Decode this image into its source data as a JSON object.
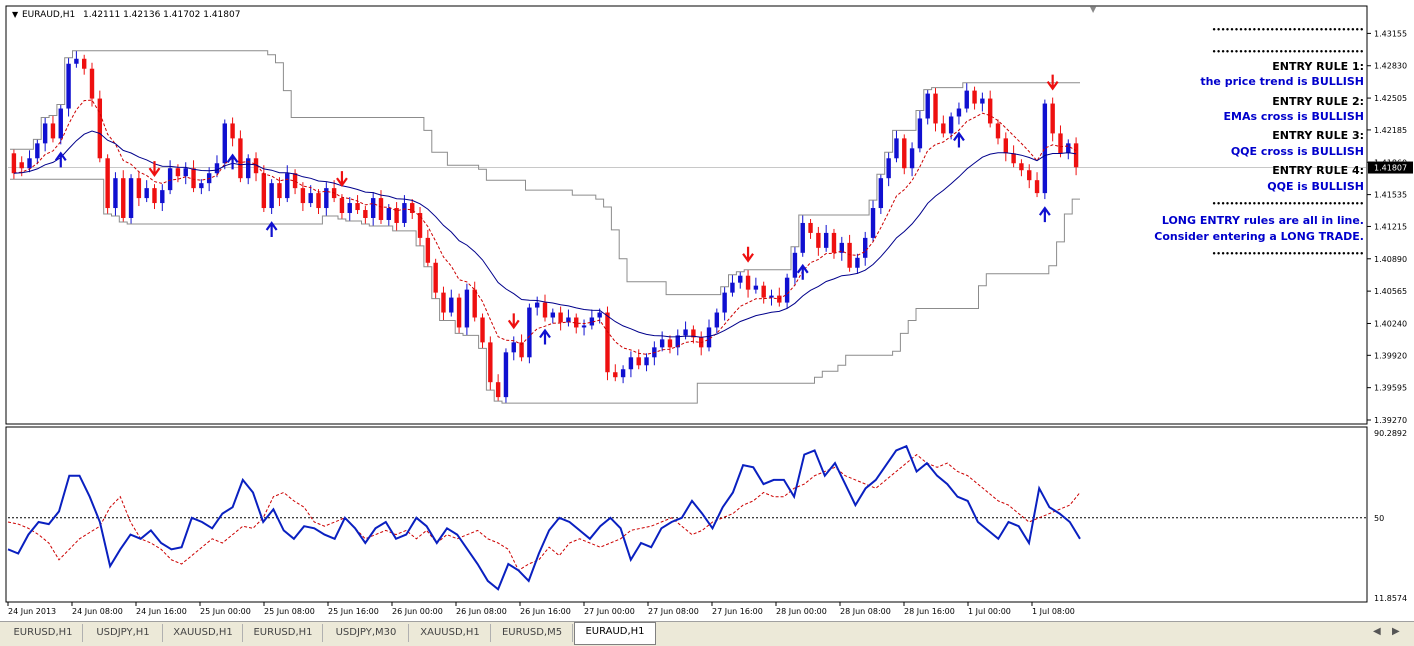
{
  "window": {
    "symbol_label": "EURAUD,H1",
    "ohlc_label": "1.42111 1.42136 1.41702 1.41807"
  },
  "chart_data": [
    {
      "type": "line",
      "panel": "price",
      "xlabel": "",
      "ylabel": "",
      "ylim": [
        1.3927,
        1.4337
      ],
      "y_ticks": [
        "1.43155",
        "1.42830",
        "1.42505",
        "1.42185",
        "1.41860",
        "1.41535",
        "1.41215",
        "1.40890",
        "1.40565",
        "1.40240",
        "1.39920",
        "1.39595",
        "1.39270"
      ],
      "x_ticks": [
        "24 Jun 2013",
        "24 Jun 08:00",
        "24 Jun 16:00",
        "25 Jun 00:00",
        "25 Jun 08:00",
        "25 Jun 16:00",
        "26 Jun 00:00",
        "26 Jun 08:00",
        "26 Jun 16:00",
        "27 Jun 00:00",
        "27 Jun 08:00",
        "27 Jun 16:00",
        "28 Jun 00:00",
        "28 Jun 08:00",
        "28 Jun 16:00",
        "1 Jul 00:00",
        "1 Jul 08:00"
      ],
      "current_price": "1.41807",
      "candles": [
        [
          1.4195,
          1.4175
        ],
        [
          1.4186,
          1.418
        ],
        [
          1.418,
          1.419
        ],
        [
          1.419,
          1.4205
        ],
        [
          1.4205,
          1.4225
        ],
        [
          1.4225,
          1.421
        ],
        [
          1.421,
          1.424
        ],
        [
          1.424,
          1.4285
        ],
        [
          1.4285,
          1.429
        ],
        [
          1.429,
          1.428
        ],
        [
          1.428,
          1.425
        ],
        [
          1.425,
          1.419
        ],
        [
          1.419,
          1.414
        ],
        [
          1.414,
          1.417
        ],
        [
          1.417,
          1.413
        ],
        [
          1.413,
          1.417
        ],
        [
          1.417,
          1.415
        ],
        [
          1.415,
          1.416
        ],
        [
          1.416,
          1.4145
        ],
        [
          1.4145,
          1.4158
        ],
        [
          1.4158,
          1.418
        ],
        [
          1.418,
          1.4172
        ],
        [
          1.4172,
          1.418
        ],
        [
          1.418,
          1.416
        ],
        [
          1.416,
          1.4165
        ],
        [
          1.4165,
          1.4175
        ],
        [
          1.4175,
          1.4185
        ],
        [
          1.4185,
          1.4225
        ],
        [
          1.4225,
          1.421
        ],
        [
          1.421,
          1.417
        ],
        [
          1.417,
          1.419
        ],
        [
          1.419,
          1.4175
        ],
        [
          1.4175,
          1.414
        ],
        [
          1.414,
          1.4165
        ],
        [
          1.4165,
          1.415
        ],
        [
          1.415,
          1.4175
        ],
        [
          1.4175,
          1.416
        ],
        [
          1.416,
          1.4145
        ],
        [
          1.4145,
          1.4155
        ],
        [
          1.4155,
          1.414
        ],
        [
          1.414,
          1.416
        ],
        [
          1.416,
          1.415
        ],
        [
          1.415,
          1.4135
        ],
        [
          1.4135,
          1.4145
        ],
        [
          1.4145,
          1.4138
        ],
        [
          1.4138,
          1.413
        ],
        [
          1.413,
          1.415
        ],
        [
          1.415,
          1.4128
        ],
        [
          1.4128,
          1.414
        ],
        [
          1.414,
          1.4125
        ],
        [
          1.4125,
          1.4145
        ],
        [
          1.4145,
          1.4135
        ],
        [
          1.4135,
          1.411
        ],
        [
          1.411,
          1.4085
        ],
        [
          1.4085,
          1.4055
        ],
        [
          1.4055,
          1.4035
        ],
        [
          1.4035,
          1.405
        ],
        [
          1.405,
          1.402
        ],
        [
          1.402,
          1.4058
        ],
        [
          1.4058,
          1.403
        ],
        [
          1.403,
          1.4005
        ],
        [
          1.4005,
          1.3965
        ],
        [
          1.3965,
          1.395
        ],
        [
          1.395,
          1.3995
        ],
        [
          1.3995,
          1.4005
        ],
        [
          1.4005,
          1.399
        ],
        [
          1.399,
          1.404
        ],
        [
          1.404,
          1.4045
        ],
        [
          1.4045,
          1.403
        ],
        [
          1.403,
          1.4035
        ],
        [
          1.4035,
          1.4025
        ],
        [
          1.4025,
          1.403
        ],
        [
          1.403,
          1.402
        ],
        [
          1.402,
          1.4022
        ],
        [
          1.4022,
          1.403
        ],
        [
          1.403,
          1.4035
        ],
        [
          1.4035,
          1.3975
        ],
        [
          1.3975,
          1.397
        ],
        [
          1.397,
          1.3978
        ],
        [
          1.3978,
          1.399
        ],
        [
          1.399,
          1.3982
        ],
        [
          1.3982,
          1.399
        ],
        [
          1.399,
          1.4
        ],
        [
          1.4,
          1.4008
        ],
        [
          1.4008,
          1.4
        ],
        [
          1.4,
          1.4012
        ],
        [
          1.4012,
          1.4018
        ],
        [
          1.4018,
          1.401
        ],
        [
          1.401,
          1.4
        ],
        [
          1.4,
          1.402
        ],
        [
          1.402,
          1.4035
        ],
        [
          1.4035,
          1.4055
        ],
        [
          1.4055,
          1.4065
        ],
        [
          1.4065,
          1.4072
        ],
        [
          1.4072,
          1.4058
        ],
        [
          1.4058,
          1.4062
        ],
        [
          1.4062,
          1.405
        ],
        [
          1.405,
          1.4052
        ],
        [
          1.4052,
          1.4045
        ],
        [
          1.4045,
          1.407
        ],
        [
          1.407,
          1.4095
        ],
        [
          1.4095,
          1.4125
        ],
        [
          1.4125,
          1.4115
        ],
        [
          1.4115,
          1.41
        ],
        [
          1.41,
          1.4115
        ],
        [
          1.4115,
          1.4095
        ],
        [
          1.4095,
          1.4105
        ],
        [
          1.4105,
          1.408
        ],
        [
          1.408,
          1.409
        ],
        [
          1.409,
          1.411
        ],
        [
          1.411,
          1.414
        ],
        [
          1.414,
          1.417
        ],
        [
          1.417,
          1.419
        ],
        [
          1.419,
          1.421
        ],
        [
          1.421,
          1.418
        ],
        [
          1.418,
          1.42
        ],
        [
          1.42,
          1.423
        ],
        [
          1.423,
          1.4255
        ],
        [
          1.4255,
          1.4225
        ],
        [
          1.4225,
          1.4215
        ],
        [
          1.4215,
          1.4232
        ],
        [
          1.4232,
          1.424
        ],
        [
          1.424,
          1.4258
        ],
        [
          1.4258,
          1.4245
        ],
        [
          1.4245,
          1.425
        ],
        [
          1.425,
          1.4225
        ],
        [
          1.4225,
          1.421
        ],
        [
          1.421,
          1.4195
        ],
        [
          1.4195,
          1.4185
        ],
        [
          1.4185,
          1.4178
        ],
        [
          1.4178,
          1.4168
        ],
        [
          1.4168,
          1.4155
        ],
        [
          1.4155,
          1.4245
        ],
        [
          1.4245,
          1.4215
        ],
        [
          1.4215,
          1.4195
        ],
        [
          1.4195,
          1.4205
        ],
        [
          1.4205,
          1.4181
        ]
      ],
      "arrows": {
        "sell_candles": [
          18,
          42,
          64,
          94,
          133,
          165
        ],
        "buy_candles": [
          6,
          28,
          33,
          68,
          101,
          121,
          132,
          170,
          191
        ]
      }
    },
    {
      "type": "line",
      "panel": "QQE",
      "xlabel": "",
      "ylabel": "",
      "ylim": [
        11.8574,
        90.2892
      ],
      "y_ticks": [
        "90.2892",
        "50",
        "11.8574"
      ],
      "level": 50,
      "series": [
        {
          "values": [
            35,
            33,
            42,
            48,
            47,
            53,
            70,
            70,
            60,
            48,
            27,
            35,
            42,
            40,
            44,
            38,
            35,
            36,
            50,
            48,
            45,
            52,
            55,
            68,
            62,
            48,
            54,
            44,
            40,
            46,
            45,
            42,
            40,
            50,
            45,
            38,
            45,
            48,
            40,
            42,
            50,
            46,
            38,
            45,
            42,
            35,
            28,
            20,
            16,
            28,
            25,
            20,
            33,
            44,
            50,
            48,
            44,
            40,
            46,
            50,
            45,
            30,
            38,
            36,
            45,
            48,
            50,
            58,
            52,
            45,
            55,
            62,
            75,
            74,
            66,
            68,
            68,
            60,
            80,
            82,
            70,
            76,
            66,
            56,
            64,
            68,
            75,
            82,
            84,
            72,
            76,
            70,
            66,
            60,
            58,
            48,
            44,
            40,
            48,
            46,
            38,
            64,
            55,
            52,
            48,
            40
          ]
        },
        {
          "values": [
            48,
            47,
            45,
            42,
            38,
            30,
            35,
            40,
            43,
            46,
            55,
            60,
            48,
            40,
            38,
            35,
            30,
            28,
            32,
            36,
            40,
            38,
            42,
            46,
            45,
            50,
            60,
            62,
            58,
            55,
            48,
            46,
            48,
            50,
            45,
            40,
            42,
            44,
            42,
            44,
            40,
            44,
            38,
            42,
            40,
            42,
            44,
            40,
            38,
            35,
            25,
            28,
            30,
            36,
            32,
            38,
            40,
            38,
            36,
            38,
            40,
            44,
            45,
            46,
            48,
            50,
            46,
            42,
            44,
            48,
            50,
            52,
            56,
            58,
            62,
            60,
            60,
            64,
            66,
            70,
            72,
            74,
            70,
            68,
            66,
            64,
            68,
            72,
            76,
            80,
            76,
            74,
            76,
            72,
            70,
            66,
            62,
            58,
            56,
            52,
            48,
            50,
            52,
            54,
            56,
            62
          ]
        }
      ]
    }
  ],
  "panel": {
    "dots_1": "••••••••••••••••••••••••••••••••••",
    "dots_2": "••••••••••••••••••••••••••••••••••",
    "rule1_title": "ENTRY RULE 1:",
    "rule1_text": "the price trend is BULLISH",
    "rule2_title": "ENTRY RULE 2:",
    "rule2_text": "EMAs cross is BULLISH",
    "rule3_title": "ENTRY RULE 3:",
    "rule3_text": "QQE cross is BULLISH",
    "rule4_title": "ENTRY RULE 4:",
    "rule4_text": "QQE is BULLISH",
    "dots_3": "••••••••••••••••••••••••••••••••••",
    "summary_1": "LONG ENTRY rules are all in line.",
    "summary_2": "Consider entering a LONG TRADE.",
    "dots_4": "••••••••••••••••••••••••••••••••••"
  },
  "tabs": [
    "EURUSD,H1",
    "USDJPY,H1",
    "XAUUSD,H1",
    "EURUSD,H1",
    "USDJPY,M30",
    "XAUUSD,H1",
    "EURUSD,M5",
    "EURAUD,H1"
  ],
  "active_tab": 7,
  "colors": {
    "bull": "#1010d0",
    "bear": "#ee1010",
    "channel": "#8c8c8c",
    "ema_fast": "#cc0000",
    "ema_slow": "#00008b",
    "qqe_main": "#0a20c0",
    "qqe_signal": "#cc0000",
    "panel_text_title": "#000000",
    "panel_text_blue": "#0000cc"
  }
}
